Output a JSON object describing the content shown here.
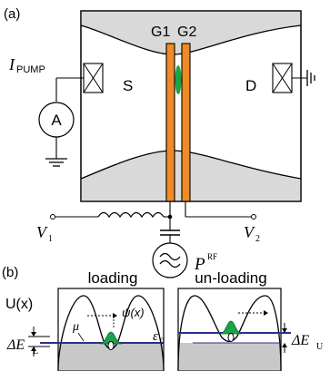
{
  "panel_a": {
    "label": "(a)",
    "gate1": "G1",
    "gate2": "G2",
    "source": "S",
    "drain": "D",
    "ammeter": "A",
    "pump_current": "I",
    "pump_current_sub": "PUMP",
    "v1": "V",
    "v1_sub": "1",
    "v2": "V",
    "v2_sub": "2",
    "rf_power": "P",
    "rf_power_sup": "RF"
  },
  "panel_b": {
    "label": "(b)",
    "loading_title": "loading",
    "unloading_title": "un-loading",
    "potential_label": "U(x)",
    "wavefunction_label": "ψ(x)",
    "mu_label": "μ",
    "epsilon_label": "ε",
    "epsilon_sub": "0",
    "delta_e": "ΔE",
    "delta_e_sub": "L",
    "delta_e_right_sub": "U"
  },
  "colors": {
    "gate": "#f08a24",
    "dot": "#1aa34a",
    "fermi_sea": "#c8c8c8",
    "fermi_level": "#2b2f8c",
    "electrode": "#d9d9d9"
  }
}
